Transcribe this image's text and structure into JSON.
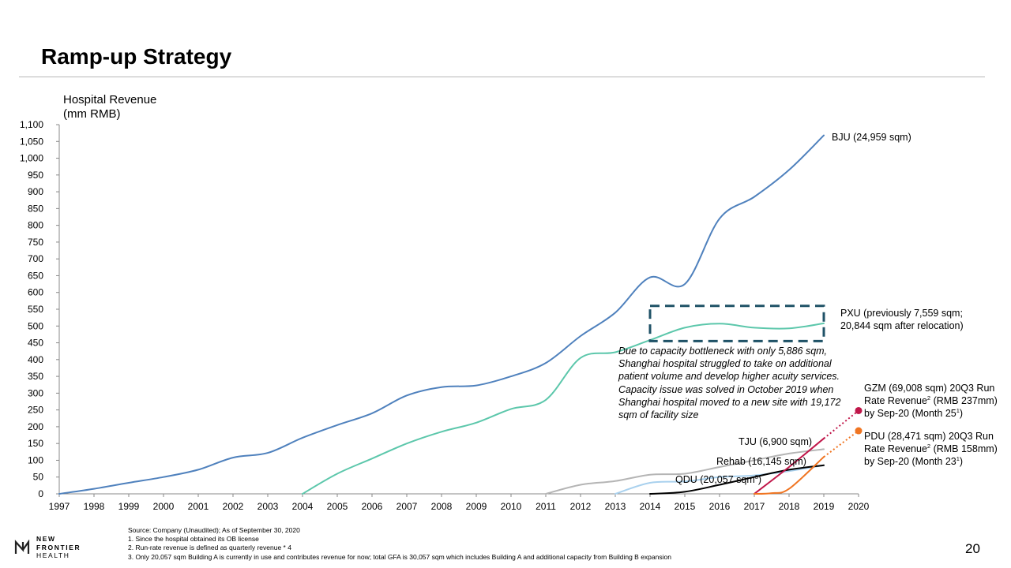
{
  "page": {
    "title": "Ramp-up Strategy",
    "page_number": "20"
  },
  "y_axis_title": {
    "line1": "Hospital Revenue",
    "line2": "(mm RMB)"
  },
  "callout_text": "Due to capacity bottleneck with only 5,886 sqm, Shanghai hospital struggled to take on additional patient volume and develop higher acuity services. Capacity issue was solved in October 2019 when Shanghai hospital moved to a new site with 19,172 sqm of facility size",
  "annotations": {
    "bju": "BJU (24,959 sqm)",
    "pxu_line1": "PXU (previously 7,559 sqm;",
    "pxu_line2": "20,844 sqm after relocation)",
    "gzm_line1": "GZM (69,008 sqm) 20Q3 Run",
    "gzm_line2a": "Rate Revenue",
    "gzm_line2_sup": "2",
    "gzm_line2b": " (RMB 237mm)",
    "gzm_line3a": "by Sep-20 (Month 25",
    "gzm_line3_sup": "1",
    "gzm_line3b": ")",
    "pdu_line1": "PDU (28,471 sqm) 20Q3 Run",
    "pdu_line2a": "Rate Revenue",
    "pdu_line2_sup": "2",
    "pdu_line2b": " (RMB 158mm)",
    "pdu_line3a": "by Sep-20 (Month 23",
    "pdu_line3_sup": "1",
    "pdu_line3b": ")",
    "tju": "TJU (6,900 sqm)",
    "rehab": "Rehab (16,145 sqm)",
    "qdu_a": "QDU (20,057 sqm",
    "qdu_sup": "3",
    "qdu_b": ")"
  },
  "sources": {
    "line1": "Source: Company (Unaudited); As of September 30, 2020",
    "line2": "1. Since the hospital obtained its OB license",
    "line3": "2. Run-rate revenue is defined as quarterly revenue * 4",
    "line4": "3. Only 20,057 sqm Building A is currently in use and contributes revenue for now; total GFA is 30,057 sqm which includes Building A and additional capacity from Building B expansion"
  },
  "logo": {
    "line1": "NEW",
    "line2": "FRONTIER",
    "line3": "HEALTH"
  },
  "colors": {
    "bju": "#4f81bd",
    "pxu": "#5cc7ab",
    "gzm": "#c0174a",
    "pdu": "#f07522",
    "tju": "#b5b5b5",
    "rehab": "#a9d1ee",
    "qdu": "#000000",
    "callout_box": "#1f5267"
  },
  "chart_data": {
    "type": "line",
    "title": "Ramp-up Strategy",
    "xlabel": "",
    "ylabel": "Hospital Revenue (mm RMB)",
    "ylim": [
      0,
      1100
    ],
    "yticks": [
      0,
      50,
      100,
      150,
      200,
      250,
      300,
      350,
      400,
      450,
      500,
      550,
      600,
      650,
      700,
      750,
      800,
      850,
      900,
      950,
      1000,
      1050,
      1100
    ],
    "ytick_labels": [
      "0",
      "50",
      "100",
      "150",
      "200",
      "250",
      "300",
      "350",
      "400",
      "450",
      "500",
      "550",
      "600",
      "650",
      "700",
      "750",
      "800",
      "850",
      "900",
      "950",
      "1,000",
      "1,050",
      "1,100"
    ],
    "xlim": [
      1997,
      2020
    ],
    "xticks": [
      1997,
      1998,
      1999,
      2000,
      2001,
      2002,
      2003,
      2004,
      2005,
      2006,
      2007,
      2008,
      2009,
      2010,
      2011,
      2012,
      2013,
      2014,
      2015,
      2016,
      2017,
      2018,
      2019,
      2020
    ],
    "grid": false,
    "series": [
      {
        "name": "BJU",
        "key": "bju",
        "x": [
          1997,
          1998,
          1999,
          2000,
          2001,
          2002,
          2003,
          2004,
          2005,
          2006,
          2007,
          2008,
          2009,
          2010,
          2011,
          2012,
          2013,
          2014,
          2015,
          2016,
          2017,
          2018,
          2019
        ],
        "values": [
          0,
          15,
          33,
          50,
          72,
          108,
          122,
          167,
          205,
          240,
          293,
          318,
          323,
          350,
          390,
          470,
          540,
          645,
          625,
          820,
          885,
          965,
          1068
        ]
      },
      {
        "name": "PXU",
        "key": "pxu",
        "x": [
          2004,
          2005,
          2006,
          2007,
          2008,
          2009,
          2010,
          2011,
          2012,
          2013,
          2014,
          2015,
          2016,
          2017,
          2018,
          2019
        ],
        "values": [
          0,
          60,
          105,
          150,
          185,
          212,
          253,
          280,
          405,
          422,
          458,
          495,
          507,
          495,
          493,
          508
        ]
      },
      {
        "name": "TJU",
        "key": "tju",
        "x": [
          2011,
          2012,
          2013,
          2014,
          2015,
          2016,
          2017,
          2018,
          2019
        ],
        "values": [
          0,
          27,
          38,
          57,
          60,
          80,
          100,
          120,
          133
        ]
      },
      {
        "name": "Rehab",
        "key": "rehab",
        "x": [
          2013,
          2014,
          2015,
          2016,
          2017,
          2018,
          2019
        ],
        "values": [
          0,
          33,
          37,
          50,
          55,
          68,
          85
        ]
      },
      {
        "name": "QDU",
        "key": "qdu",
        "x": [
          2014,
          2015,
          2016,
          2017,
          2018,
          2019
        ],
        "values": [
          0,
          6,
          27,
          50,
          72,
          85
        ]
      },
      {
        "name": "GZM",
        "key": "gzm",
        "x": [
          2017,
          2018,
          2019
        ],
        "values": [
          0,
          80,
          165
        ],
        "projection": {
          "x": [
            2019,
            2020
          ],
          "values": [
            165,
            248
          ]
        }
      },
      {
        "name": "PDU",
        "key": "pdu",
        "x": [
          2017,
          2017.5,
          2018,
          2019
        ],
        "values": [
          0,
          2,
          15,
          110
        ],
        "projection": {
          "x": [
            2019,
            2020
          ],
          "values": [
            110,
            188
          ]
        }
      }
    ],
    "highlight_box": {
      "x": [
        2014,
        2019
      ],
      "y": [
        455,
        560
      ]
    }
  }
}
